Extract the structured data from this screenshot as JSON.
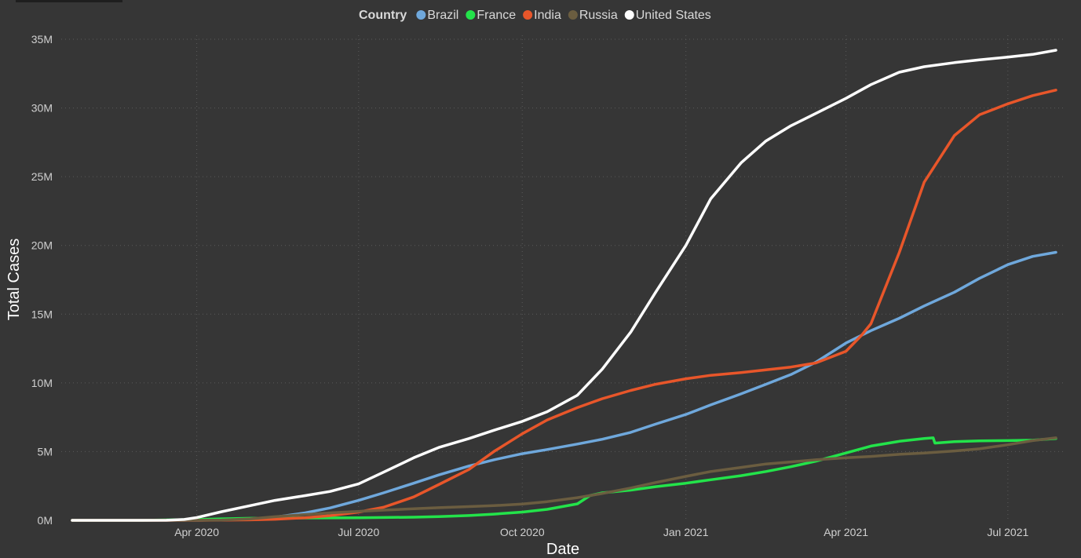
{
  "chart_data": {
    "type": "line",
    "xlabel": "Date",
    "ylabel": "Total Cases",
    "legend_title": "Country",
    "legend_position": "top-center",
    "grid": true,
    "ylim": [
      0,
      35000000
    ],
    "y_ticks": [
      0,
      5000000,
      10000000,
      15000000,
      20000000,
      25000000,
      30000000,
      35000000
    ],
    "y_tick_labels": [
      "0M",
      "5M",
      "10M",
      "15M",
      "20M",
      "25M",
      "30M",
      "35M"
    ],
    "xlim": [
      "2020-01-22",
      "2021-07-28"
    ],
    "x_ticks": [
      "2020-04-01",
      "2020-07-01",
      "2020-10-01",
      "2021-01-01",
      "2021-04-01",
      "2021-07-01"
    ],
    "x_tick_labels": [
      "Apr 2020",
      "Jul 2020",
      "Oct 2020",
      "Jan 2021",
      "Apr 2021",
      "Jul 2021"
    ],
    "series": [
      {
        "name": "Brazil",
        "color": "#6fa8dc",
        "points": [
          [
            "2020-01-22",
            0
          ],
          [
            "2020-03-01",
            0
          ],
          [
            "2020-04-01",
            6000
          ],
          [
            "2020-04-15",
            30000
          ],
          [
            "2020-05-01",
            90000
          ],
          [
            "2020-05-15",
            230000
          ],
          [
            "2020-06-01",
            540000
          ],
          [
            "2020-06-15",
            900000
          ],
          [
            "2020-07-01",
            1450000
          ],
          [
            "2020-07-15",
            2000000
          ],
          [
            "2020-08-01",
            2700000
          ],
          [
            "2020-08-15",
            3300000
          ],
          [
            "2020-09-01",
            3950000
          ],
          [
            "2020-09-15",
            4400000
          ],
          [
            "2020-10-01",
            4850000
          ],
          [
            "2020-10-15",
            5150000
          ],
          [
            "2020-11-01",
            5550000
          ],
          [
            "2020-11-15",
            5900000
          ],
          [
            "2020-12-01",
            6400000
          ],
          [
            "2020-12-15",
            7000000
          ],
          [
            "2021-01-01",
            7700000
          ],
          [
            "2021-01-15",
            8400000
          ],
          [
            "2021-02-01",
            9200000
          ],
          [
            "2021-02-15",
            9900000
          ],
          [
            "2021-03-01",
            10600000
          ],
          [
            "2021-03-15",
            11500000
          ],
          [
            "2021-04-01",
            12900000
          ],
          [
            "2021-04-15",
            13800000
          ],
          [
            "2021-05-01",
            14700000
          ],
          [
            "2021-05-15",
            15600000
          ],
          [
            "2021-06-01",
            16600000
          ],
          [
            "2021-06-15",
            17600000
          ],
          [
            "2021-07-01",
            18600000
          ],
          [
            "2021-07-15",
            19200000
          ],
          [
            "2021-07-28",
            19500000
          ]
        ]
      },
      {
        "name": "France",
        "color": "#23e34a",
        "points": [
          [
            "2020-01-22",
            0
          ],
          [
            "2020-03-01",
            0
          ],
          [
            "2020-04-01",
            60000
          ],
          [
            "2020-04-15",
            110000
          ],
          [
            "2020-05-01",
            150000
          ],
          [
            "2020-06-01",
            170000
          ],
          [
            "2020-07-01",
            190000
          ],
          [
            "2020-08-01",
            230000
          ],
          [
            "2020-08-15",
            270000
          ],
          [
            "2020-09-01",
            350000
          ],
          [
            "2020-09-15",
            450000
          ],
          [
            "2020-10-01",
            600000
          ],
          [
            "2020-10-15",
            800000
          ],
          [
            "2020-11-01",
            1200000
          ],
          [
            "2020-11-08",
            1800000
          ],
          [
            "2020-11-15",
            2000000
          ],
          [
            "2020-12-01",
            2200000
          ],
          [
            "2020-12-15",
            2450000
          ],
          [
            "2021-01-01",
            2700000
          ],
          [
            "2021-01-15",
            2950000
          ],
          [
            "2021-02-01",
            3250000
          ],
          [
            "2021-02-15",
            3550000
          ],
          [
            "2021-03-01",
            3900000
          ],
          [
            "2021-03-15",
            4300000
          ],
          [
            "2021-04-01",
            4900000
          ],
          [
            "2021-04-15",
            5400000
          ],
          [
            "2021-05-01",
            5750000
          ],
          [
            "2021-05-15",
            5950000
          ],
          [
            "2021-05-20",
            6000000
          ],
          [
            "2021-05-21",
            5620000
          ],
          [
            "2021-06-01",
            5720000
          ],
          [
            "2021-06-15",
            5780000
          ],
          [
            "2021-07-01",
            5800000
          ],
          [
            "2021-07-15",
            5830000
          ],
          [
            "2021-07-28",
            5950000
          ]
        ]
      },
      {
        "name": "India",
        "color": "#e8562a",
        "points": [
          [
            "2020-01-22",
            0
          ],
          [
            "2020-04-01",
            2000
          ],
          [
            "2020-04-15",
            12000
          ],
          [
            "2020-05-01",
            35000
          ],
          [
            "2020-05-15",
            80000
          ],
          [
            "2020-06-01",
            190000
          ],
          [
            "2020-06-15",
            340000
          ],
          [
            "2020-07-01",
            600000
          ],
          [
            "2020-07-15",
            950000
          ],
          [
            "2020-08-01",
            1700000
          ],
          [
            "2020-08-15",
            2600000
          ],
          [
            "2020-09-01",
            3700000
          ],
          [
            "2020-09-15",
            5000000
          ],
          [
            "2020-10-01",
            6300000
          ],
          [
            "2020-10-15",
            7300000
          ],
          [
            "2020-11-01",
            8200000
          ],
          [
            "2020-11-15",
            8850000
          ],
          [
            "2020-12-01",
            9450000
          ],
          [
            "2020-12-15",
            9900000
          ],
          [
            "2021-01-01",
            10300000
          ],
          [
            "2021-01-15",
            10550000
          ],
          [
            "2021-02-01",
            10750000
          ],
          [
            "2021-02-15",
            10950000
          ],
          [
            "2021-03-01",
            11150000
          ],
          [
            "2021-03-15",
            11450000
          ],
          [
            "2021-04-01",
            12300000
          ],
          [
            "2021-04-10",
            13500000
          ],
          [
            "2021-04-15",
            14300000
          ],
          [
            "2021-05-01",
            19500000
          ],
          [
            "2021-05-15",
            24600000
          ],
          [
            "2021-06-01",
            28000000
          ],
          [
            "2021-06-15",
            29500000
          ],
          [
            "2021-07-01",
            30300000
          ],
          [
            "2021-07-15",
            30900000
          ],
          [
            "2021-07-28",
            31300000
          ]
        ]
      },
      {
        "name": "Russia",
        "color": "#6b5d40",
        "points": [
          [
            "2020-01-22",
            0
          ],
          [
            "2020-03-15",
            100
          ],
          [
            "2020-04-01",
            3000
          ],
          [
            "2020-04-15",
            25000
          ],
          [
            "2020-05-01",
            110000
          ],
          [
            "2020-05-15",
            260000
          ],
          [
            "2020-06-01",
            420000
          ],
          [
            "2020-06-15",
            540000
          ],
          [
            "2020-07-01",
            650000
          ],
          [
            "2020-07-15",
            740000
          ],
          [
            "2020-08-01",
            840000
          ],
          [
            "2020-08-15",
            920000
          ],
          [
            "2020-09-01",
            1000000
          ],
          [
            "2020-09-15",
            1070000
          ],
          [
            "2020-10-01",
            1180000
          ],
          [
            "2020-10-15",
            1360000
          ],
          [
            "2020-11-01",
            1650000
          ],
          [
            "2020-11-15",
            1950000
          ],
          [
            "2020-12-01",
            2350000
          ],
          [
            "2020-12-15",
            2750000
          ],
          [
            "2021-01-01",
            3200000
          ],
          [
            "2021-01-15",
            3550000
          ],
          [
            "2021-02-01",
            3850000
          ],
          [
            "2021-02-15",
            4100000
          ],
          [
            "2021-03-01",
            4250000
          ],
          [
            "2021-03-15",
            4400000
          ],
          [
            "2021-04-01",
            4550000
          ],
          [
            "2021-04-15",
            4650000
          ],
          [
            "2021-05-01",
            4800000
          ],
          [
            "2021-05-15",
            4900000
          ],
          [
            "2021-06-01",
            5050000
          ],
          [
            "2021-06-15",
            5200000
          ],
          [
            "2021-07-01",
            5500000
          ],
          [
            "2021-07-15",
            5800000
          ],
          [
            "2021-07-28",
            6000000
          ]
        ]
      },
      {
        "name": "United States",
        "color": "#ffffff",
        "points": [
          [
            "2020-01-22",
            0
          ],
          [
            "2020-03-01",
            50
          ],
          [
            "2020-03-15",
            3500
          ],
          [
            "2020-03-25",
            60000
          ],
          [
            "2020-04-01",
            200000
          ],
          [
            "2020-04-15",
            630000
          ],
          [
            "2020-05-01",
            1070000
          ],
          [
            "2020-05-15",
            1450000
          ],
          [
            "2020-06-01",
            1800000
          ],
          [
            "2020-06-15",
            2100000
          ],
          [
            "2020-07-01",
            2650000
          ],
          [
            "2020-07-15",
            3500000
          ],
          [
            "2020-08-01",
            4550000
          ],
          [
            "2020-08-15",
            5300000
          ],
          [
            "2020-09-01",
            5950000
          ],
          [
            "2020-09-15",
            6550000
          ],
          [
            "2020-10-01",
            7200000
          ],
          [
            "2020-10-15",
            7900000
          ],
          [
            "2020-11-01",
            9100000
          ],
          [
            "2020-11-15",
            11000000
          ],
          [
            "2020-12-01",
            13700000
          ],
          [
            "2020-12-15",
            16600000
          ],
          [
            "2021-01-01",
            20000000
          ],
          [
            "2021-01-15",
            23400000
          ],
          [
            "2021-02-01",
            26000000
          ],
          [
            "2021-02-15",
            27600000
          ],
          [
            "2021-03-01",
            28700000
          ],
          [
            "2021-03-15",
            29600000
          ],
          [
            "2021-04-01",
            30700000
          ],
          [
            "2021-04-15",
            31700000
          ],
          [
            "2021-05-01",
            32600000
          ],
          [
            "2021-05-15",
            33000000
          ],
          [
            "2021-06-01",
            33300000
          ],
          [
            "2021-06-15",
            33500000
          ],
          [
            "2021-07-01",
            33700000
          ],
          [
            "2021-07-15",
            33900000
          ],
          [
            "2021-07-28",
            34200000
          ]
        ]
      }
    ]
  }
}
